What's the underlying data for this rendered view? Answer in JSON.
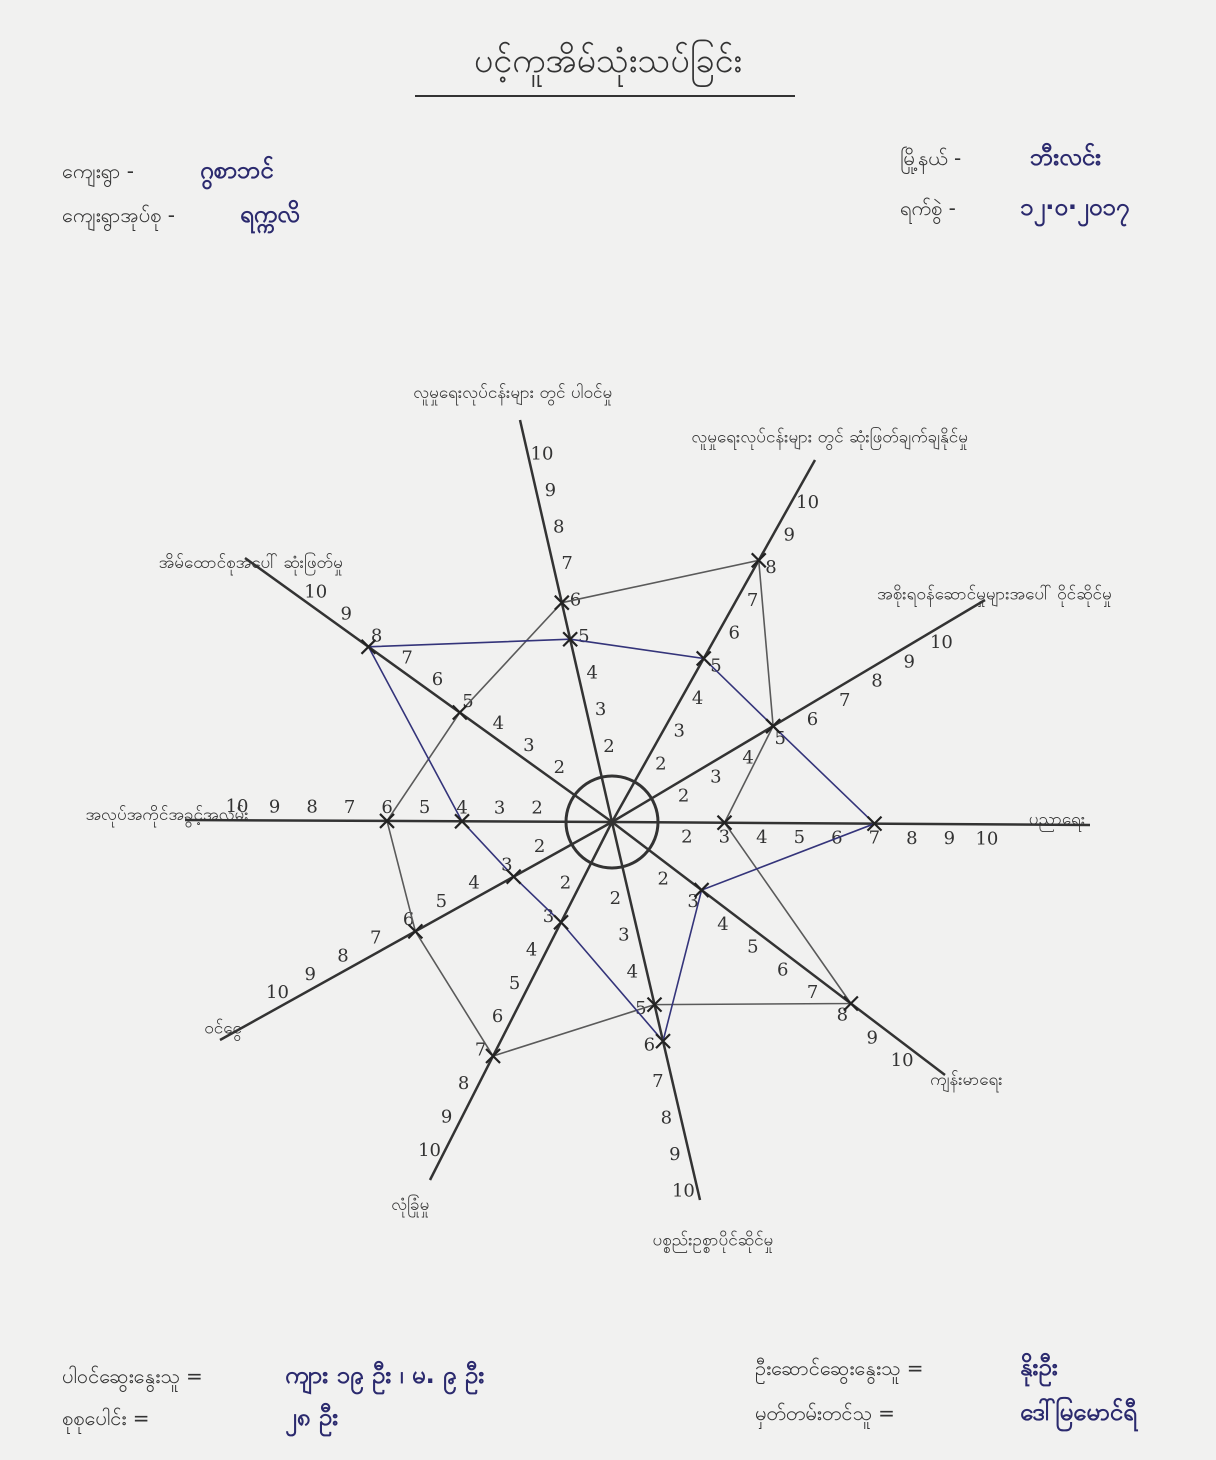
{
  "header": {
    "title": "ပင့်ကူအိမ်သုံးသပ်ခြင်း",
    "village_label": "ကျေးရွာ -",
    "village": "ဂွစာဘင်",
    "tract_label": "ကျေးရွာအုပ်စု -",
    "tract": "ရက္ကလိ",
    "township_label": "မြို့နယ် -",
    "township": "ဘီးလင်း",
    "date_label": "ရက်စွဲ -",
    "date": "၁၂·၀·၂၀၁၇"
  },
  "chart_data": {
    "type": "radar",
    "axes": [
      "လူမှုရေးလုပ်ငန်းများ တွင် ပါဝင်မှု",
      "လူမှုရေးလုပ်ငန်းများ တွင် ဆုံးဖြတ်ချက်ချနိုင်မှု",
      "အစိုးရဝန်ဆောင်မှုများအပေါ် ဝိုင်ဆိုင်မှု",
      "ပညာရေး",
      "ကျန်းမာရေး",
      "ပစ္စည်းဥစ္စာပိုင်ဆိုင်မှု",
      "လုံခြုံမှု",
      "ဝင်ငွေ",
      "အလုပ်အကိုင်အခွင့်အလမ်း",
      "အိမ်ထောင်စုအပေါ် ဆုံးဖြတ်မှု"
    ],
    "series": [
      {
        "color": "#5a5a5a",
        "values": [
          6,
          8,
          5,
          3,
          8,
          5,
          7,
          6,
          6,
          5
        ]
      },
      {
        "color": "#34347a",
        "values": [
          5,
          5,
          5,
          7,
          3,
          6,
          3,
          3,
          4,
          8
        ]
      }
    ],
    "rlim": [
      0,
      10
    ],
    "rticks": [
      2,
      3,
      4,
      5,
      6,
      7,
      8,
      9,
      10
    ]
  },
  "footer": {
    "participants_label": "ပါဝင်ဆွေးနွေးသူ =",
    "participants": "ကျား ၁၉ ဦး ၊ မ. ၉ ဦး",
    "total_label": "စုစုပေါင်း =",
    "total": "၂၈ ဦး",
    "facilitator_label": "ဦးဆောင်ဆွေးနွေးသူ =",
    "facilitator": "နိုးဦး",
    "recorder_label": "မှတ်တမ်းတင်သူ =",
    "recorder": "ဒေါ်မြမောင်ရီ"
  }
}
